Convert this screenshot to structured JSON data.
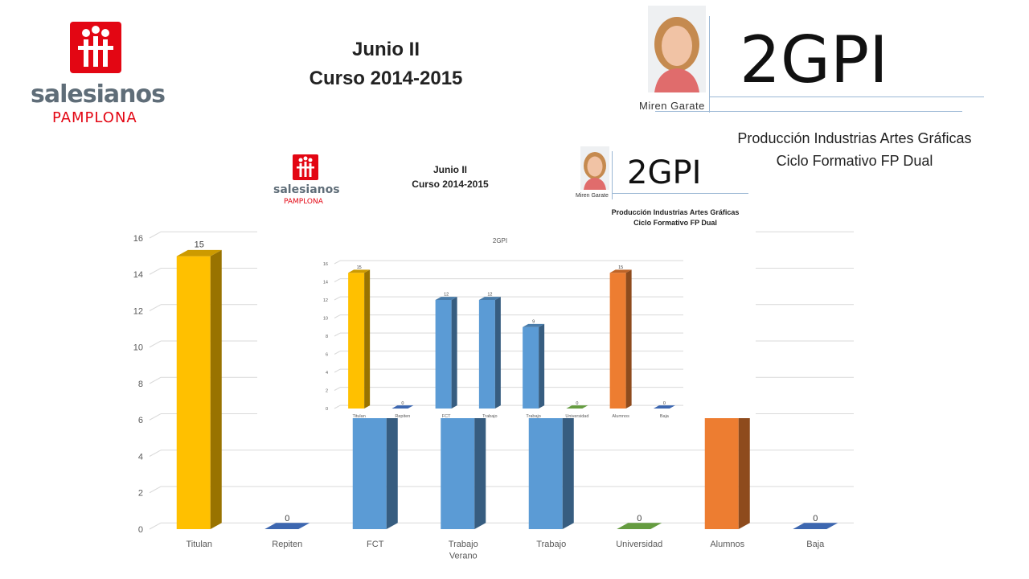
{
  "header": {
    "title_line1": "Junio II",
    "title_line2": "Curso 2014-2015",
    "logo_word": "salesianos",
    "logo_city": "PAMPLONA",
    "teacher_name": "Miren Garate",
    "group_code": "2GPI",
    "program_line1": "Producción Industrias Artes Gráficas",
    "program_line2": "Ciclo Formativo FP Dual"
  },
  "inset": {
    "title_line1": "Junio II",
    "title_line2": "Curso 2014-2015",
    "logo_word": "salesianos",
    "logo_city": "PAMPLONA",
    "teacher_name": "Miren Garate",
    "group_code": "2GPI",
    "program_line1": "Producción Industrias Artes Gráficas",
    "program_line2": "Ciclo Formativo FP Dual",
    "chart_title": "2GPI"
  },
  "chart_data": [
    {
      "type": "bar",
      "title": "",
      "categories": [
        "Titulan",
        "Repiten",
        "FCT",
        "Trabajo Verano",
        "Trabajo",
        "Universidad",
        "Alumnos",
        "Baja"
      ],
      "values": [
        15,
        0,
        12,
        12,
        9,
        0,
        15,
        0
      ],
      "colors": [
        "#ffc000",
        "#4472c4",
        "#5b9bd5",
        "#5b9bd5",
        "#5b9bd5",
        "#70ad47",
        "#ed7d31",
        "#4472c4"
      ],
      "data_labels": [
        "15",
        "0",
        "",
        "",
        "",
        "0",
        "",
        "0"
      ],
      "yticks": [
        "0",
        "2",
        "4",
        "6",
        "8",
        "10",
        "12",
        "14",
        "16"
      ],
      "ylim": [
        0,
        16
      ]
    },
    {
      "type": "bar",
      "title": "2GPI",
      "categories": [
        "Titulan",
        "Repiten",
        "FCT",
        "Trabajo Verano",
        "Trabajo",
        "Universidad",
        "Alumnos",
        "Baja"
      ],
      "values": [
        15,
        0,
        12,
        12,
        9,
        0,
        15,
        0
      ],
      "colors": [
        "#ffc000",
        "#4472c4",
        "#5b9bd5",
        "#5b9bd5",
        "#5b9bd5",
        "#70ad47",
        "#ed7d31",
        "#4472c4"
      ],
      "data_labels": [
        "15",
        "0",
        "12",
        "12",
        "9",
        "0",
        "15",
        "0"
      ],
      "yticks": [
        "0",
        "2",
        "4",
        "6",
        "8",
        "10",
        "12",
        "14",
        "16"
      ],
      "ylim": [
        0,
        16
      ]
    }
  ]
}
